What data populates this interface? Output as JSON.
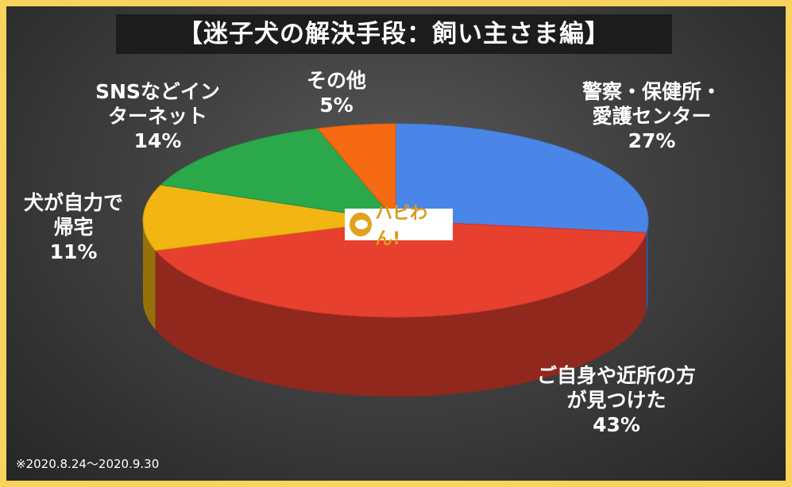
{
  "title": "【迷子犬の解決手段：飼い主さま編】",
  "note": "※2020.8.24～2020.9.30",
  "logo": {
    "text": "ハピわん!"
  },
  "chart_data": {
    "type": "pie",
    "title": "【迷子犬の解決手段：飼い主さま編】",
    "slices": [
      {
        "label": "警察・保健所・愛護センター",
        "value": 27,
        "display": "27%",
        "color": "#4a86e8"
      },
      {
        "label": "ご自身や近所の方が見つけた",
        "value": 43,
        "display": "43%",
        "color": "#e8402f"
      },
      {
        "label": "犬が自力で帰宅",
        "value": 11,
        "display": "11%",
        "color": "#f2b511"
      },
      {
        "label": "SNSなどインターネット",
        "value": 14,
        "display": "14%",
        "color": "#2ba84a"
      },
      {
        "label": "その他",
        "value": 5,
        "display": "5%",
        "color": "#f56a12"
      }
    ]
  },
  "labels": {
    "police": {
      "line1": "警察・保健所・",
      "line2": "愛護センター",
      "pct": "27%"
    },
    "self": {
      "line1": "ご自身や近所の方",
      "line2": "が見つけた",
      "pct": "43%"
    },
    "home": {
      "line1": "犬が自力で",
      "line2": "帰宅",
      "pct": "11%"
    },
    "sns": {
      "line1": "SNSなどイン",
      "line2": "ターネット",
      "pct": "14%"
    },
    "other": {
      "line1": "その他",
      "pct": "5%"
    }
  }
}
